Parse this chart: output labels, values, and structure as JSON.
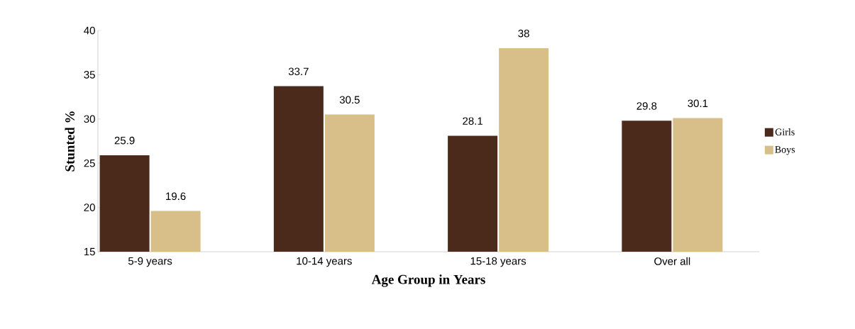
{
  "chart_data": {
    "type": "bar",
    "xlabel": "Age Group in Years",
    "ylabel": "Stunted  %",
    "categories": [
      "5-9 years",
      "10-14 years",
      "15-18 years",
      "Over all"
    ],
    "series": [
      {
        "name": "Girls",
        "color": "#4b2a1c",
        "values": [
          25.9,
          33.7,
          28.1,
          29.8
        ]
      },
      {
        "name": "Boys",
        "color": "#d8bf8a",
        "values": [
          19.6,
          30.5,
          38,
          30.1
        ]
      }
    ],
    "ylim": [
      15,
      40
    ],
    "yticks": [
      15,
      20,
      25,
      30,
      35,
      40
    ],
    "data_labels": true,
    "legend": "right",
    "grid": false
  }
}
